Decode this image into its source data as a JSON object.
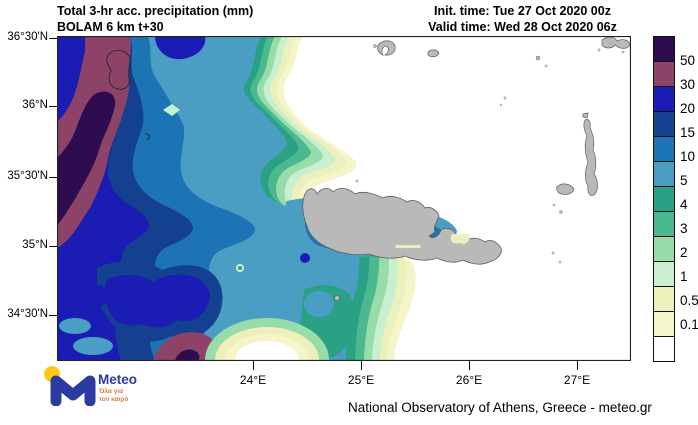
{
  "header": {
    "title_line1": "Total 3-hr acc. precipitation (mm)",
    "title_line2": "BOLAM 6 km t+30",
    "init_time": "Init. time: Tue 27 Oct 2020 00z",
    "valid_time": "Valid time: Wed 28 Oct 2020 06z"
  },
  "footer": {
    "credit": "National Observatory of Athens, Greece - meteo.gr"
  },
  "logo": {
    "name": "Meteo",
    "tagline_line1": "Όλα για",
    "tagline_line2": "τον καιρό",
    "brand_blue": "#2c3ba0",
    "brand_yellow": "#ffc913",
    "tagline_color": "#e0763c"
  },
  "map": {
    "lat_labels": [
      "36°30'N",
      "36°N",
      "35°30'N",
      "35°N",
      "34°30'N"
    ],
    "lon_labels": [
      "24°E",
      "25°E",
      "26°E",
      "27°E"
    ],
    "region": "Crete and southern Aegean Sea"
  },
  "colorbar": {
    "values": [
      "50",
      "30",
      "20",
      "15",
      "10",
      "5",
      "4",
      "3",
      "2",
      "1",
      "0.5",
      "0.1"
    ],
    "segment_keys": [
      "c_gt50",
      "c30_50",
      "c20_30",
      "c15_20",
      "c10_15",
      "c5_10",
      "c4_5",
      "c3_4",
      "c2_3",
      "c1_2",
      "c05_1",
      "c01_05",
      "c_lt01"
    ]
  },
  "palette": {
    "c_gt50": "#2e0c50",
    "c30_50": "#8d4267",
    "c20_30": "#1b1cb4",
    "c15_20": "#14418f",
    "c10_15": "#1d74b4",
    "c5_10": "#4a9ec4",
    "c4_5": "#2aa185",
    "c3_4": "#4cb88f",
    "c2_3": "#98dcaa",
    "c1_2": "#c8f0d0",
    "c05_1": "#ecf0bc",
    "c01_05": "#f5f5c9",
    "c_lt01": "#ffffff",
    "land": "#b9b9b9",
    "coastline": "#5f5f5f",
    "border": "#222222"
  }
}
